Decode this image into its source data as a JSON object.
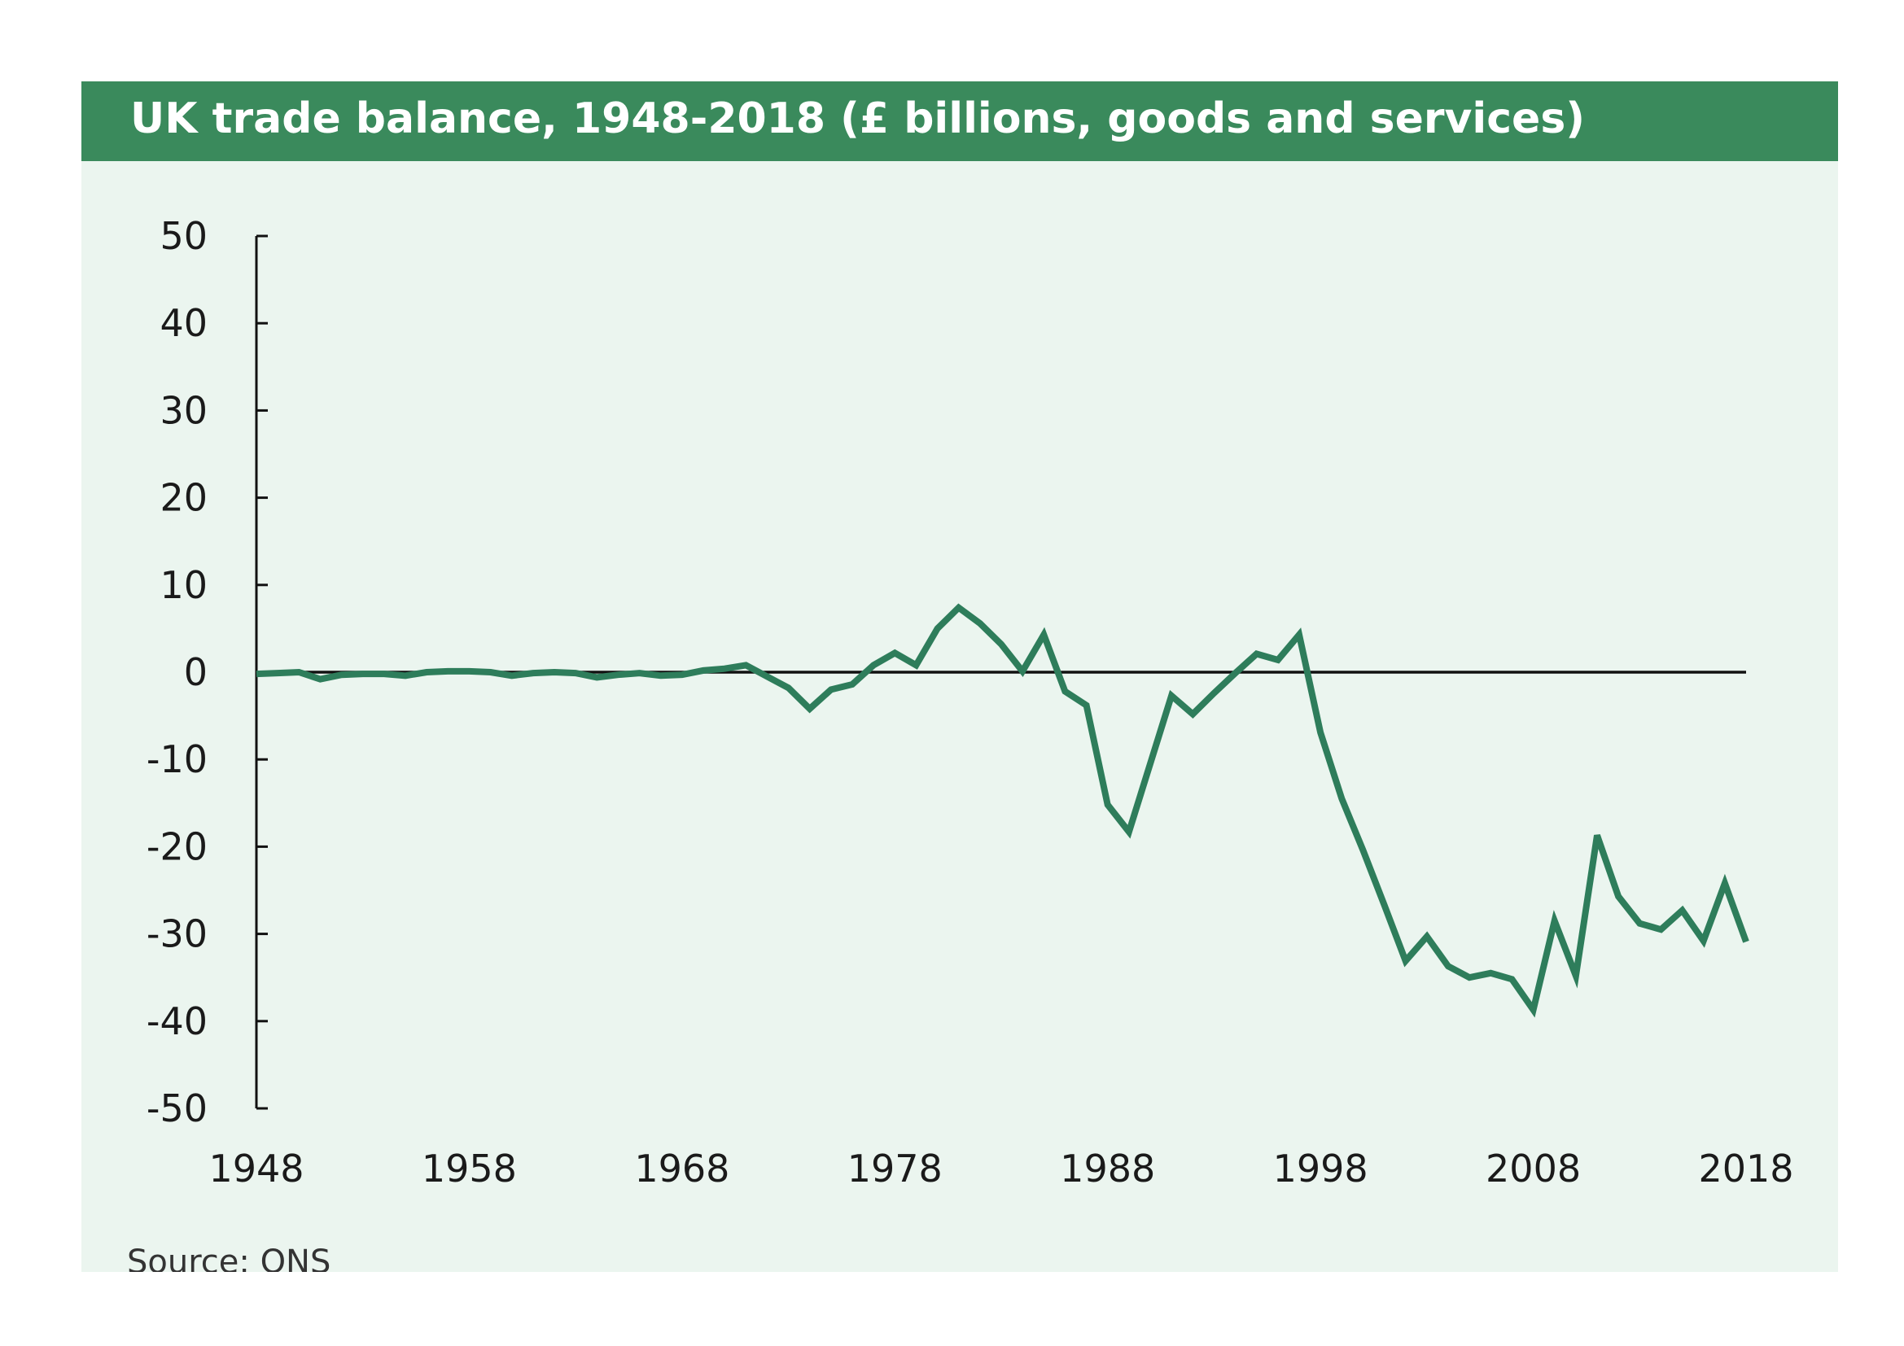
{
  "chart_data": {
    "type": "line",
    "title": "UK trade balance, 1948-2018 (£ billions, goods and services)",
    "xlabel": "",
    "ylabel": "",
    "xlim": [
      1948,
      2018
    ],
    "ylim": [
      -50,
      50
    ],
    "x_ticks": [
      "1948",
      "1958",
      "1968",
      "1978",
      "1988",
      "1998",
      "2008",
      "2018"
    ],
    "y_ticks": [
      "50",
      "40",
      "30",
      "20",
      "10",
      "0",
      "-10",
      "-20",
      "-30",
      "-40",
      "-50"
    ],
    "grid": false,
    "zero_line": true,
    "line_color": "#2e7d5b",
    "series": [
      {
        "x": [
          1948,
          1949,
          1950,
          1951,
          1952,
          1953,
          1954,
          1955,
          1956,
          1957,
          1958,
          1959,
          1960,
          1961,
          1962,
          1963,
          1964,
          1965,
          1966,
          1967,
          1968,
          1969,
          1970,
          1971,
          1972,
          1973,
          1974,
          1975,
          1976,
          1977,
          1978,
          1979,
          1980,
          1981,
          1982,
          1983,
          1984,
          1985,
          1986,
          1987,
          1988,
          1989,
          1990,
          1991,
          1992,
          1993,
          1994,
          1995,
          1996,
          1997,
          1998,
          1999,
          2000,
          2001,
          2002,
          2003,
          2004,
          2005,
          2006,
          2007,
          2008,
          2009,
          2010,
          2011,
          2012,
          2013,
          2014,
          2015,
          2016,
          2017,
          2018
        ],
        "values": [
          -0.2,
          -0.1,
          0,
          -0.8,
          -0.3,
          -0.2,
          -0.2,
          -0.4,
          0,
          0.1,
          0.1,
          0,
          -0.4,
          -0.1,
          0,
          -0.1,
          -0.6,
          -0.3,
          -0.1,
          -0.4,
          -0.3,
          0.2,
          0.4,
          0.8,
          -0.5,
          -1.8,
          -4.2,
          -2,
          -1.4,
          0.8,
          2.2,
          0.8,
          5,
          7.4,
          5.6,
          3.2,
          0.1,
          4.3,
          -2.2,
          -3.8,
          -15.2,
          -18.3,
          -10.5,
          -2.7,
          -4.8,
          -2.4,
          -0.1,
          2.1,
          1.4,
          4.3,
          -6.9,
          -14.5,
          -20.4,
          -26.7,
          -33.1,
          -30.3,
          -33.7,
          -35,
          -34.5,
          -35.2,
          -38.7,
          -28.5,
          -34.8,
          -18.7,
          -25.7,
          -28.8,
          -29.5,
          -27.3,
          -30.8,
          -24.2,
          -30.9
        ]
      }
    ],
    "source": "Source: ONS"
  },
  "colors": {
    "header": "#3a8a5c",
    "background": "#ebf5ef",
    "line": "#2e7d5b"
  }
}
